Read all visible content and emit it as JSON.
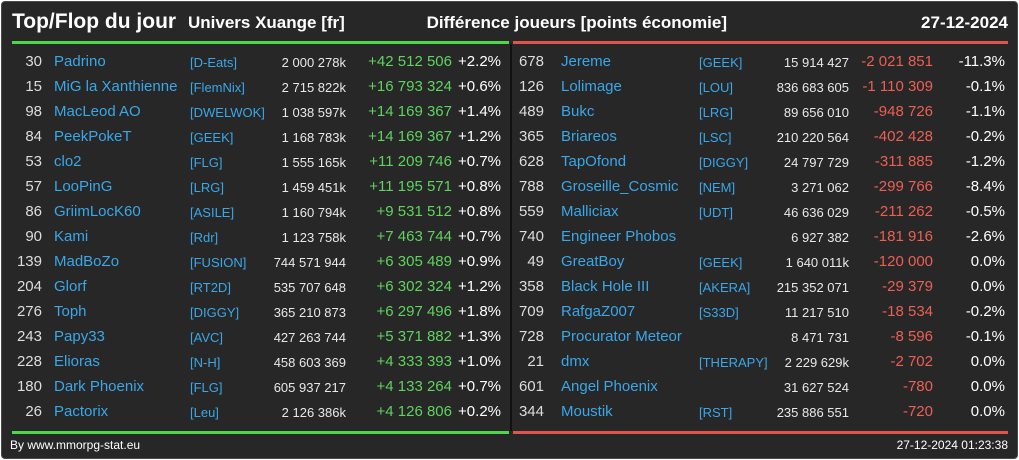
{
  "header": {
    "title": "Top/Flop du jour",
    "subtitle": "Univers Xuange [fr]",
    "right_title": "Différence joueurs [points économie]",
    "date": "27-12-2024"
  },
  "colors": {
    "top_accent": "#4cd74c",
    "flop_accent": "#e0544a",
    "link": "#3aa7e8"
  },
  "top": [
    {
      "rank": "30",
      "name": "Padrino",
      "guild": "[D-Eats]",
      "points": "2 000 278k",
      "diff": "+42 512 506",
      "pct": "+2.2%"
    },
    {
      "rank": "15",
      "name": "MiG la Xanthienne",
      "guild": "[FlemNix]",
      "points": "2 715 822k",
      "diff": "+16 793 324",
      "pct": "+0.6%"
    },
    {
      "rank": "98",
      "name": "MacLeod AO",
      "guild": "[DWELWOK]",
      "points": "1 038 597k",
      "diff": "+14 169 367",
      "pct": "+1.4%"
    },
    {
      "rank": "84",
      "name": "PeekPokeT",
      "guild": "[GEEK]",
      "points": "1 168 783k",
      "diff": "+14 169 367",
      "pct": "+1.2%"
    },
    {
      "rank": "53",
      "name": "clo2",
      "guild": "[FLG]",
      "points": "1 555 165k",
      "diff": "+11 209 746",
      "pct": "+0.7%"
    },
    {
      "rank": "57",
      "name": "LooPinG",
      "guild": "[LRG]",
      "points": "1 459 451k",
      "diff": "+11 195 571",
      "pct": "+0.8%"
    },
    {
      "rank": "86",
      "name": "GriimLocK60",
      "guild": "[ASILE]",
      "points": "1 160 794k",
      "diff": "+9 531 512",
      "pct": "+0.8%"
    },
    {
      "rank": "90",
      "name": "Kami",
      "guild": "[Rdr]",
      "points": "1 123 758k",
      "diff": "+7 463 744",
      "pct": "+0.7%"
    },
    {
      "rank": "139",
      "name": "MadBoZo",
      "guild": "[FUSION]",
      "points": "744 571 944",
      "diff": "+6 305 489",
      "pct": "+0.9%"
    },
    {
      "rank": "204",
      "name": "Glorf",
      "guild": "[RT2D]",
      "points": "535 707 648",
      "diff": "+6 302 324",
      "pct": "+1.2%"
    },
    {
      "rank": "276",
      "name": "Toph",
      "guild": "[DIGGY]",
      "points": "365 210 873",
      "diff": "+6 297 496",
      "pct": "+1.8%"
    },
    {
      "rank": "243",
      "name": "Papy33",
      "guild": "[AVC]",
      "points": "427 263 744",
      "diff": "+5 371 882",
      "pct": "+1.3%"
    },
    {
      "rank": "228",
      "name": "Elioras",
      "guild": "[N-H]",
      "points": "458 603 369",
      "diff": "+4 333 393",
      "pct": "+1.0%"
    },
    {
      "rank": "180",
      "name": "Dark Phoenix",
      "guild": "[FLG]",
      "points": "605 937 217",
      "diff": "+4 133 264",
      "pct": "+0.7%"
    },
    {
      "rank": "26",
      "name": "Pactorix",
      "guild": "[Leu]",
      "points": "2 126 386k",
      "diff": "+4 126 806",
      "pct": "+0.2%"
    }
  ],
  "flop": [
    {
      "rank": "678",
      "name": "Jereme",
      "guild": "[GEEK]",
      "points": "15 914 427",
      "diff": "-2 021 851",
      "pct": "-11.3%"
    },
    {
      "rank": "126",
      "name": "Lolimage",
      "guild": "[LOU]",
      "points": "836 683 605",
      "diff": "-1 110 309",
      "pct": "-0.1%"
    },
    {
      "rank": "489",
      "name": "Bukc",
      "guild": "[LRG]",
      "points": "89 656 010",
      "diff": "-948 726",
      "pct": "-1.1%"
    },
    {
      "rank": "365",
      "name": "Briareos",
      "guild": "[LSC]",
      "points": "210 220 564",
      "diff": "-402 428",
      "pct": "-0.2%"
    },
    {
      "rank": "628",
      "name": "TapOfond",
      "guild": "[DIGGY]",
      "points": "24 797 729",
      "diff": "-311 885",
      "pct": "-1.2%"
    },
    {
      "rank": "788",
      "name": "Groseille_Cosmic",
      "guild": "[NEM]",
      "points": "3 271 062",
      "diff": "-299 766",
      "pct": "-8.4%"
    },
    {
      "rank": "559",
      "name": "Malliciax",
      "guild": "[UDT]",
      "points": "46 636 029",
      "diff": "-211 262",
      "pct": "-0.5%"
    },
    {
      "rank": "740",
      "name": "Engineer Phobos",
      "guild": "",
      "points": "6 927 382",
      "diff": "-181 916",
      "pct": "-2.6%"
    },
    {
      "rank": "49",
      "name": "GreatBoy",
      "guild": "[GEEK]",
      "points": "1 640 011k",
      "diff": "-120 000",
      "pct": "0.0%"
    },
    {
      "rank": "358",
      "name": "Black Hole III",
      "guild": "[AKERA]",
      "points": "215 352 071",
      "diff": "-29 379",
      "pct": "0.0%"
    },
    {
      "rank": "709",
      "name": "RafgaZ007",
      "guild": "[S33D]",
      "points": "11 217 510",
      "diff": "-18 534",
      "pct": "-0.2%"
    },
    {
      "rank": "728",
      "name": "Procurator Meteor",
      "guild": "",
      "points": "8 471 731",
      "diff": "-8 596",
      "pct": "-0.1%"
    },
    {
      "rank": "21",
      "name": "dmx",
      "guild": "[THERAPY]",
      "points": "2 229 629k",
      "diff": "-2 702",
      "pct": "0.0%"
    },
    {
      "rank": "601",
      "name": "Angel Phoenix",
      "guild": "",
      "points": "31 627 524",
      "diff": "-780",
      "pct": "0.0%"
    },
    {
      "rank": "344",
      "name": "Moustik",
      "guild": "[RST]",
      "points": "235 886 551",
      "diff": "-720",
      "pct": "0.0%"
    }
  ],
  "footer": {
    "credit": "By www.mmorpg-stat.eu",
    "timestamp": "27-12-2024 01:23:38"
  }
}
